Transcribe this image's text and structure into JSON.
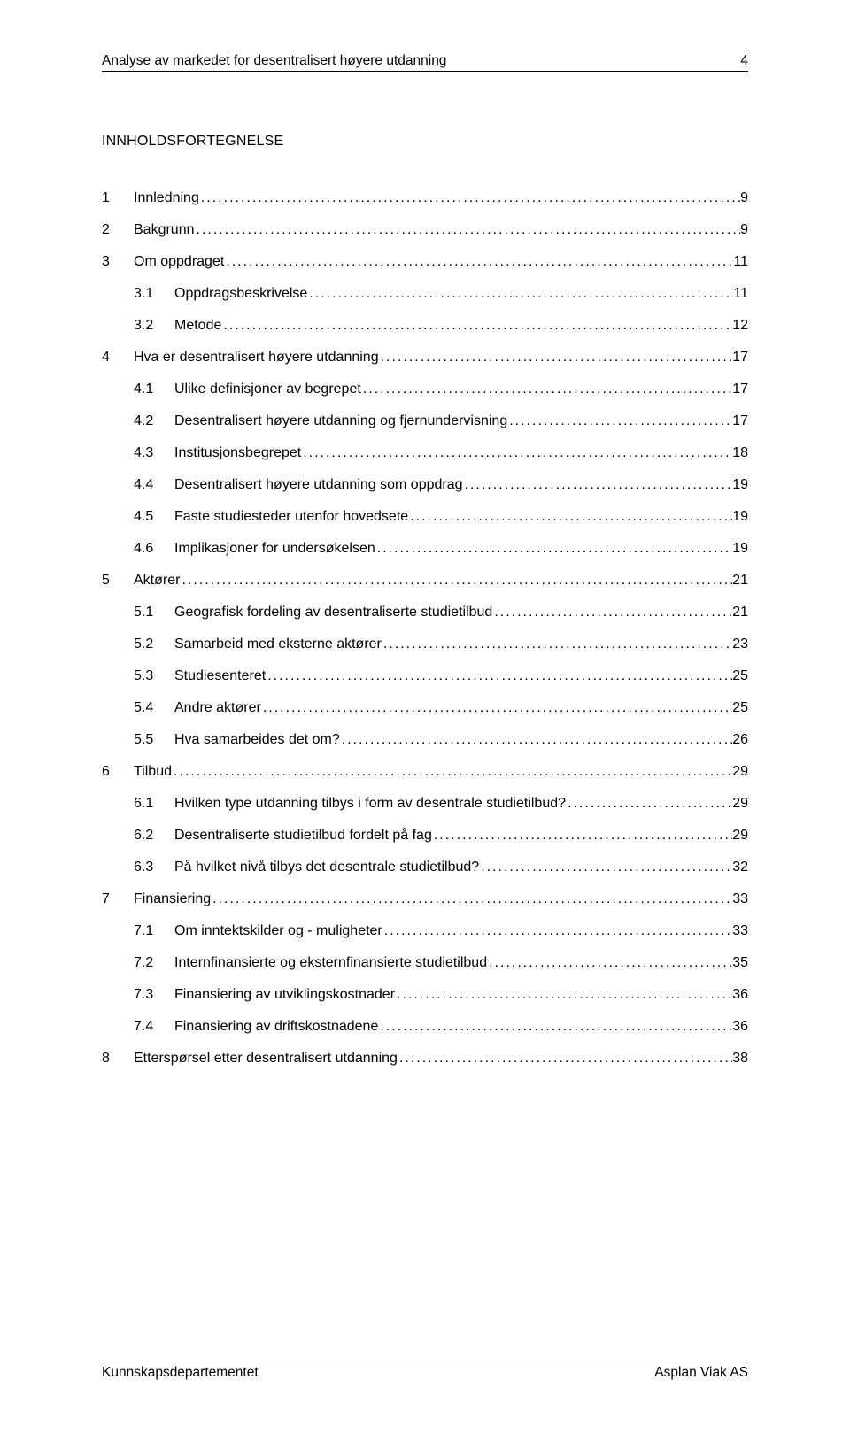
{
  "header": {
    "title": "Analyse av markedet for desentralisert høyere utdanning",
    "page": "4"
  },
  "toc_heading": "INNHOLDSFORTEGNELSE",
  "toc": [
    {
      "level": 1,
      "num": "1",
      "label": "Innledning",
      "page": "9"
    },
    {
      "level": 1,
      "num": "2",
      "label": "Bakgrunn",
      "page": "9"
    },
    {
      "level": 1,
      "num": "3",
      "label": "Om oppdraget",
      "page": "11"
    },
    {
      "level": 2,
      "num": "3.1",
      "label": "Oppdragsbeskrivelse",
      "page": "11"
    },
    {
      "level": 2,
      "num": "3.2",
      "label": "Metode",
      "page": "12"
    },
    {
      "level": 1,
      "num": "4",
      "label": "Hva er desentralisert høyere utdanning",
      "page": "17"
    },
    {
      "level": 2,
      "num": "4.1",
      "label": "Ulike definisjoner av begrepet",
      "page": "17"
    },
    {
      "level": 2,
      "num": "4.2",
      "label": "Desentralisert høyere utdanning og fjernundervisning",
      "page": "17"
    },
    {
      "level": 2,
      "num": "4.3",
      "label": "Institusjonsbegrepet",
      "page": "18"
    },
    {
      "level": 2,
      "num": "4.4",
      "label": "Desentralisert høyere utdanning som oppdrag",
      "page": "19"
    },
    {
      "level": 2,
      "num": "4.5",
      "label": "Faste studiesteder utenfor hovedsete",
      "page": "19"
    },
    {
      "level": 2,
      "num": "4.6",
      "label": "Implikasjoner for undersøkelsen",
      "page": "19"
    },
    {
      "level": 1,
      "num": "5",
      "label": "Aktører",
      "page": "21"
    },
    {
      "level": 2,
      "num": "5.1",
      "label": "Geografisk fordeling av desentraliserte studietilbud",
      "page": "21"
    },
    {
      "level": 2,
      "num": "5.2",
      "label": "Samarbeid med eksterne aktører",
      "page": "23"
    },
    {
      "level": 2,
      "num": "5.3",
      "label": "Studiesenteret",
      "page": "25"
    },
    {
      "level": 2,
      "num": "5.4",
      "label": "Andre aktører",
      "page": "25"
    },
    {
      "level": 2,
      "num": "5.5",
      "label": "Hva samarbeides det om?",
      "page": "26"
    },
    {
      "level": 1,
      "num": "6",
      "label": "Tilbud",
      "page": "29"
    },
    {
      "level": 2,
      "num": "6.1",
      "label": "Hvilken type utdanning tilbys i form av desentrale studietilbud?",
      "page": "29"
    },
    {
      "level": 2,
      "num": "6.2",
      "label": "Desentraliserte studietilbud fordelt på fag",
      "page": "29"
    },
    {
      "level": 2,
      "num": "6.3",
      "label": "På hvilket nivå tilbys det desentrale studietilbud?",
      "page": "32"
    },
    {
      "level": 1,
      "num": "7",
      "label": "Finansiering",
      "page": "33"
    },
    {
      "level": 2,
      "num": "7.1",
      "label": "Om inntektskilder og - muligheter",
      "page": "33"
    },
    {
      "level": 2,
      "num": "7.2",
      "label": "Internfinansierte og eksternfinansierte studietilbud",
      "page": "35"
    },
    {
      "level": 2,
      "num": "7.3",
      "label": "Finansiering av utviklingskostnader",
      "page": "36"
    },
    {
      "level": 2,
      "num": "7.4",
      "label": "Finansiering av driftskostnadene",
      "page": "36"
    },
    {
      "level": 1,
      "num": "8",
      "label": "Etterspørsel etter desentralisert utdanning",
      "page": "38"
    }
  ],
  "footer": {
    "left": "Kunnskapsdepartementet",
    "right": "Asplan Viak AS"
  }
}
